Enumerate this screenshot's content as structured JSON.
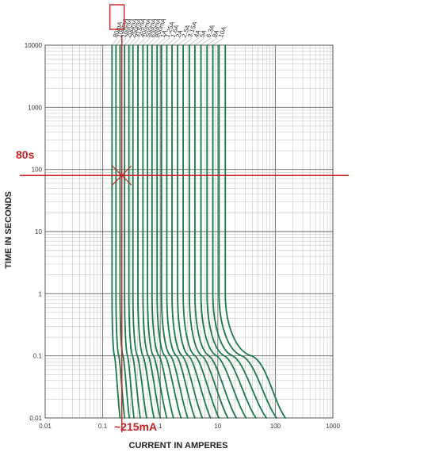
{
  "chart_data": {
    "type": "line",
    "xlabel": "CURRENT IN AMPERES",
    "ylabel": "TIME IN SECONDS",
    "x_scale": "log",
    "y_scale": "log",
    "xlim": [
      0.01,
      1000
    ],
    "ylim": [
      0.01,
      10000
    ],
    "x_ticks": [
      "0.01",
      "0.1",
      "1",
      "10",
      "100",
      "1000"
    ],
    "y_ticks": [
      "0.01",
      "0.1",
      "1",
      "10",
      "100",
      "1000",
      "10000"
    ],
    "grid": true,
    "line_color": "#1a7a4c",
    "series": [
      {
        "name": "80mA",
        "points": [
          [
            0.145,
            10000
          ],
          [
            0.145,
            1
          ],
          [
            0.16,
            0.1
          ],
          [
            0.2,
            0.01
          ]
        ]
      },
      {
        "name": "100mA",
        "points": [
          [
            0.17,
            10000
          ],
          [
            0.17,
            1
          ],
          [
            0.19,
            0.1
          ],
          [
            0.24,
            0.01
          ]
        ]
      },
      {
        "name": "160mA",
        "points": [
          [
            0.2,
            10000
          ],
          [
            0.2,
            1
          ],
          [
            0.225,
            0.1
          ],
          [
            0.29,
            0.01
          ]
        ]
      },
      {
        "name": "200mA",
        "points": [
          [
            0.24,
            10000
          ],
          [
            0.24,
            1
          ],
          [
            0.27,
            0.1
          ],
          [
            0.35,
            0.01
          ]
        ]
      },
      {
        "name": "250mA",
        "points": [
          [
            0.285,
            10000
          ],
          [
            0.285,
            1
          ],
          [
            0.33,
            0.1
          ],
          [
            0.45,
            0.01
          ]
        ]
      },
      {
        "name": "315mA",
        "points": [
          [
            0.335,
            10000
          ],
          [
            0.335,
            1
          ],
          [
            0.4,
            0.1
          ],
          [
            0.58,
            0.01
          ]
        ]
      },
      {
        "name": "400mA",
        "points": [
          [
            0.41,
            10000
          ],
          [
            0.41,
            1
          ],
          [
            0.5,
            0.1
          ],
          [
            0.78,
            0.01
          ]
        ]
      },
      {
        "name": "500mA",
        "points": [
          [
            0.5,
            10000
          ],
          [
            0.5,
            1
          ],
          [
            0.62,
            0.1
          ],
          [
            1.0,
            0.01
          ]
        ]
      },
      {
        "name": "630mA",
        "points": [
          [
            0.6,
            10000
          ],
          [
            0.6,
            1
          ],
          [
            0.76,
            0.1
          ],
          [
            1.3,
            0.01
          ]
        ]
      },
      {
        "name": "800mA",
        "points": [
          [
            0.72,
            10000
          ],
          [
            0.72,
            1
          ],
          [
            0.95,
            0.1
          ],
          [
            1.7,
            0.01
          ]
        ]
      },
      {
        "name": "1A",
        "points": [
          [
            0.88,
            10000
          ],
          [
            0.88,
            1
          ],
          [
            1.2,
            0.1
          ],
          [
            2.3,
            0.01
          ]
        ]
      },
      {
        "name": "1.25A",
        "points": [
          [
            1.05,
            10000
          ],
          [
            1.05,
            1
          ],
          [
            1.5,
            0.1
          ],
          [
            3.0,
            0.01
          ]
        ]
      },
      {
        "name": "1.6A",
        "points": [
          [
            1.3,
            10000
          ],
          [
            1.3,
            1
          ],
          [
            1.9,
            0.1
          ],
          [
            4.0,
            0.01
          ]
        ]
      },
      {
        "name": "2A",
        "points": [
          [
            1.6,
            10000
          ],
          [
            1.6,
            1
          ],
          [
            2.4,
            0.1
          ],
          [
            5.4,
            0.01
          ]
        ]
      },
      {
        "name": "2.5A",
        "points": [
          [
            2.0,
            10000
          ],
          [
            2.0,
            1
          ],
          [
            3.1,
            0.1
          ],
          [
            7.5,
            0.01
          ]
        ]
      },
      {
        "name": "3.15A",
        "points": [
          [
            2.5,
            10000
          ],
          [
            2.5,
            1
          ],
          [
            4.0,
            0.1
          ],
          [
            10.5,
            0.01
          ]
        ]
      },
      {
        "name": "4A",
        "points": [
          [
            3.2,
            10000
          ],
          [
            3.2,
            1
          ],
          [
            5.3,
            0.1
          ],
          [
            15,
            0.01
          ]
        ]
      },
      {
        "name": "5A",
        "points": [
          [
            4.0,
            10000
          ],
          [
            4.0,
            1
          ],
          [
            7.0,
            0.1
          ],
          [
            21,
            0.01
          ]
        ]
      },
      {
        "name": "6.3A",
        "points": [
          [
            5.1,
            10000
          ],
          [
            5.1,
            1
          ],
          [
            9.5,
            0.1
          ],
          [
            31,
            0.01
          ]
        ]
      },
      {
        "name": "8A",
        "points": [
          [
            6.5,
            10000
          ],
          [
            6.5,
            1
          ],
          [
            13,
            0.1
          ],
          [
            46,
            0.01
          ]
        ]
      },
      {
        "name": "10A",
        "points": [
          [
            8.2,
            10000
          ],
          [
            8.2,
            1
          ],
          [
            18,
            0.1
          ],
          [
            70,
            0.01
          ]
        ]
      },
      {
        "name": "",
        "points": [
          [
            10.5,
            10000
          ],
          [
            10.5,
            1
          ],
          [
            26,
            0.1
          ],
          [
            105,
            0.01
          ]
        ]
      },
      {
        "name": "",
        "points": [
          [
            13.5,
            10000
          ],
          [
            13.5,
            1
          ],
          [
            38,
            0.1
          ],
          [
            150,
            0.01
          ]
        ]
      }
    ],
    "annotations": {
      "time_label": "80s",
      "current_label": "~215mA",
      "time_value": 80,
      "current_value": 0.215,
      "highlighted_series": "100mA",
      "marker_color": "#cc1f1f"
    }
  }
}
